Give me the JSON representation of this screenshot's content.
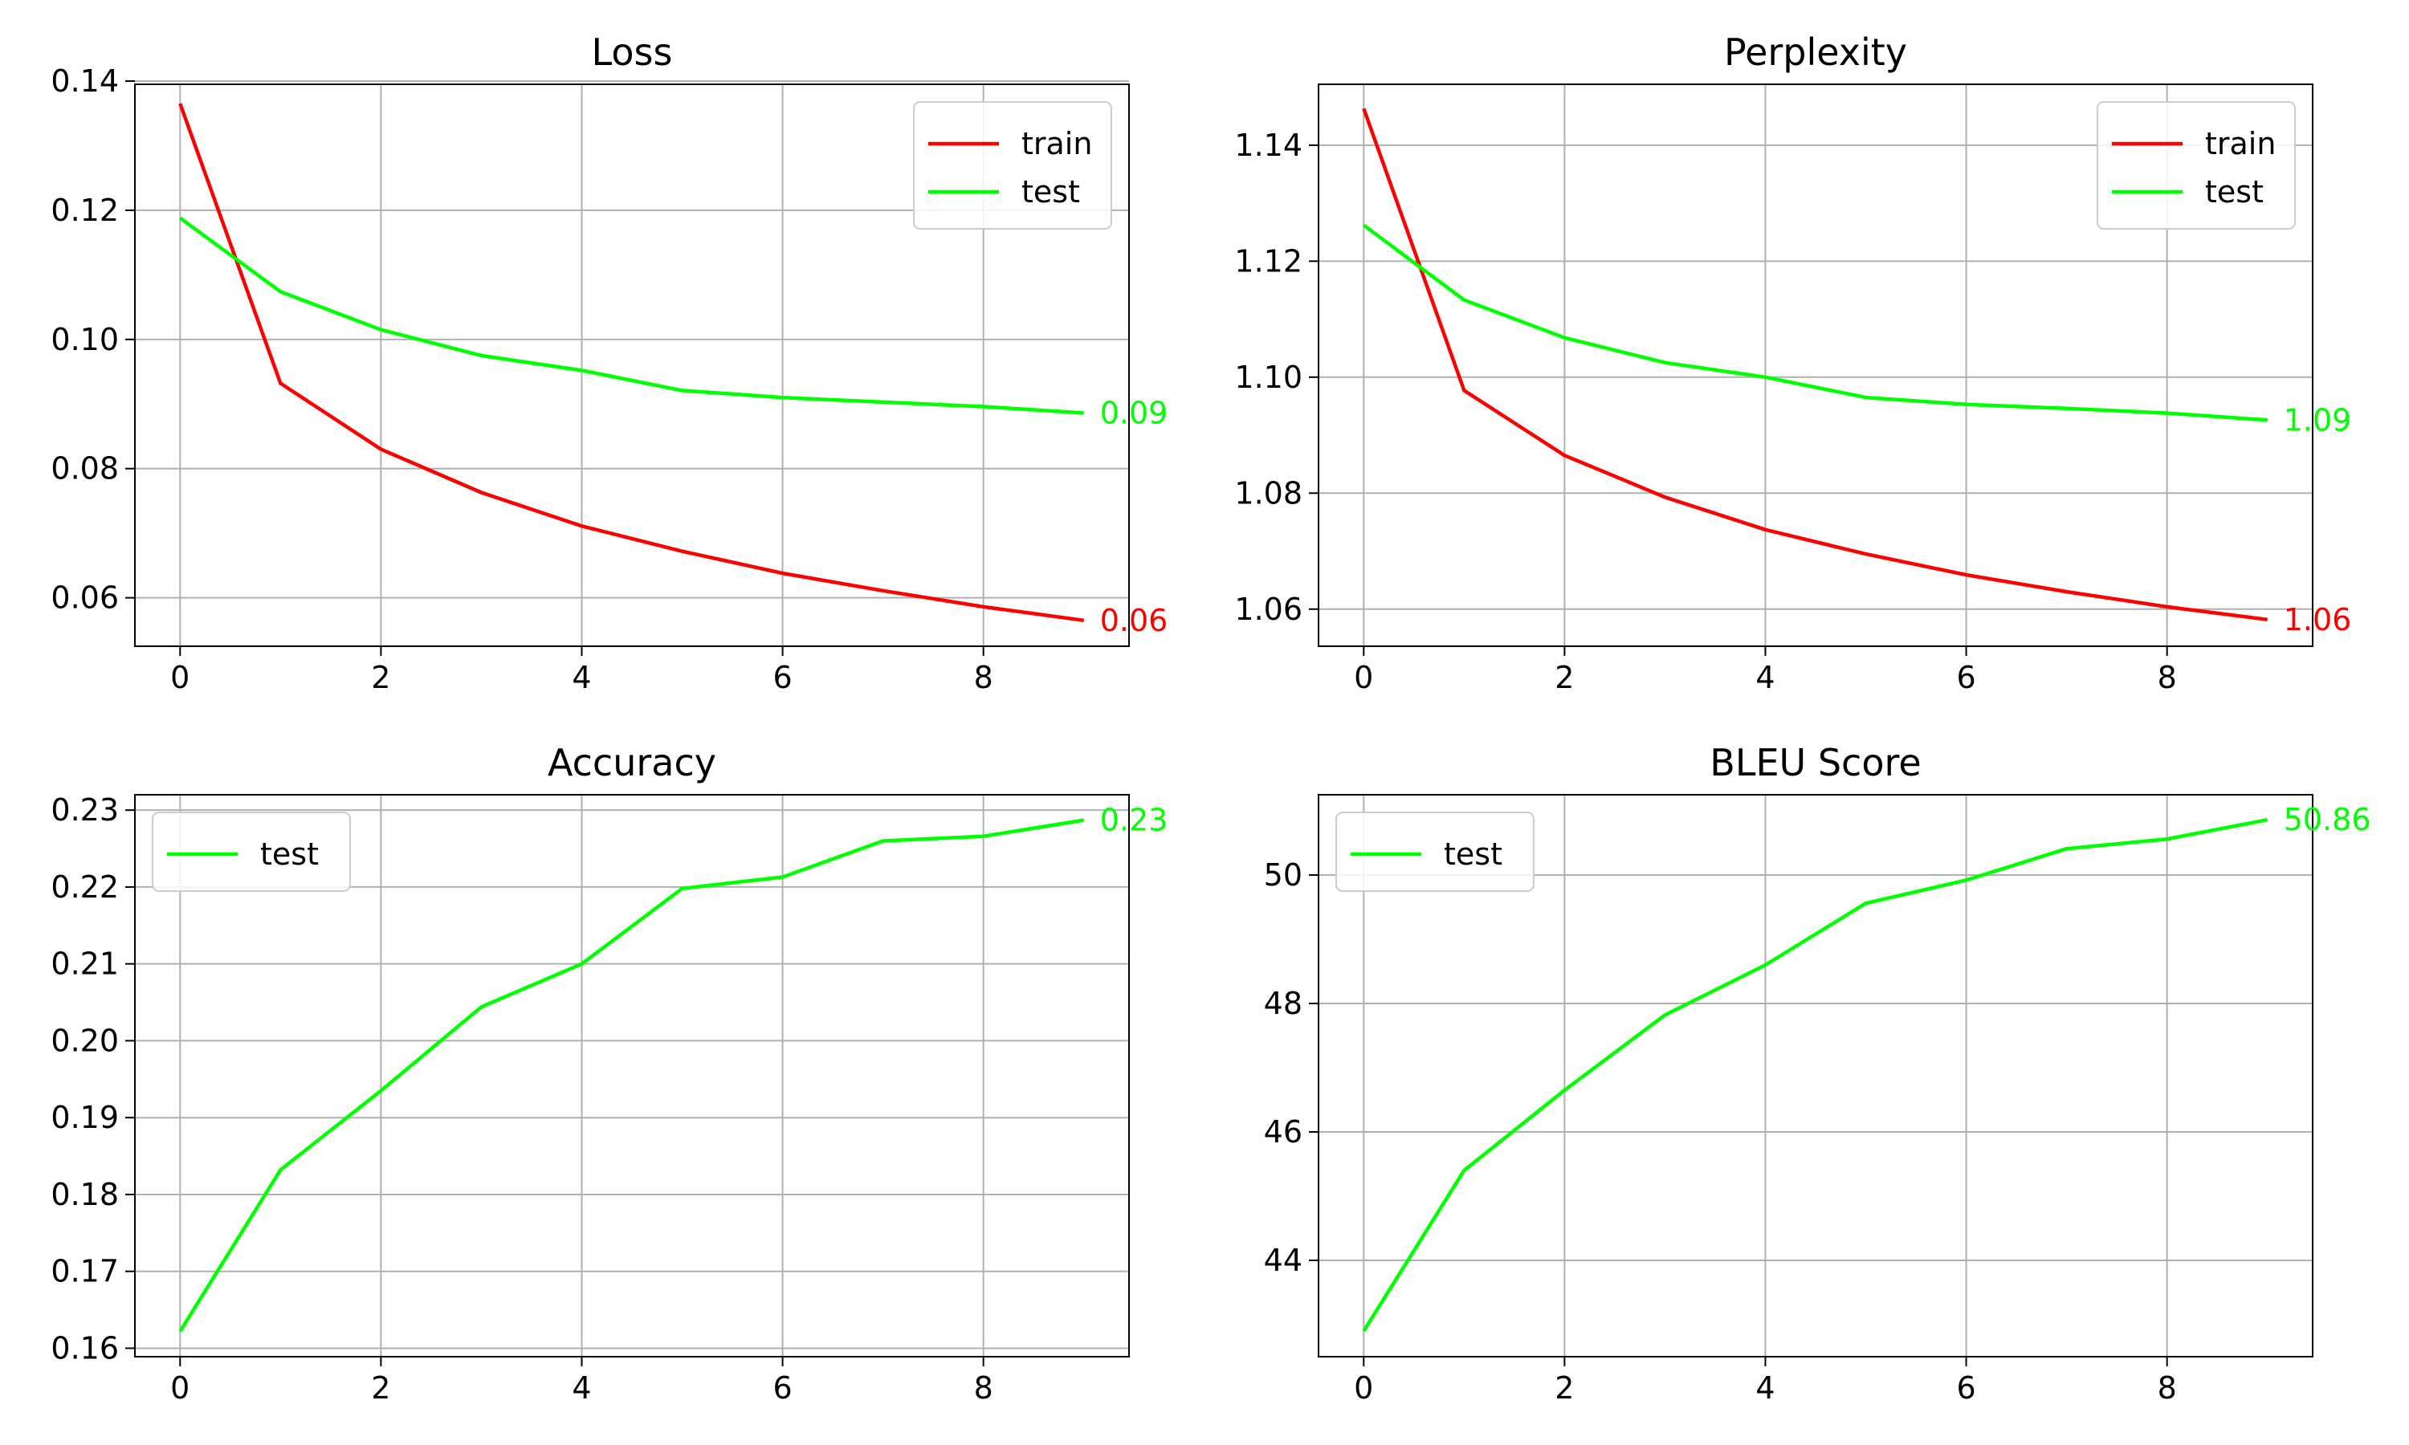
{
  "colors": {
    "train": "#ff0000",
    "test": "#00ff00"
  },
  "chart_data": [
    {
      "type": "line",
      "title": "Loss",
      "x": [
        0,
        1,
        2,
        3,
        4,
        5,
        6,
        7,
        8,
        9
      ],
      "xlim": [
        -0.45,
        9.45
      ],
      "ylim": [
        0.0525,
        0.1395
      ],
      "xticks": [
        "0",
        "2",
        "4",
        "6",
        "8"
      ],
      "yticks": [
        "0.06",
        "0.08",
        "0.10",
        "0.12",
        "0.14"
      ],
      "grid": true,
      "legend_position": "upper-right",
      "series": [
        {
          "name": "train",
          "color": "#ff0000",
          "values": [
            0.1365,
            0.0932,
            0.083,
            0.0763,
            0.0711,
            0.0672,
            0.0638,
            0.0611,
            0.0586,
            0.0565
          ],
          "end_label": "0.06"
        },
        {
          "name": "test",
          "color": "#00ff00",
          "values": [
            0.1188,
            0.1074,
            0.1015,
            0.0975,
            0.0952,
            0.0921,
            0.091,
            0.0903,
            0.0896,
            0.0886
          ],
          "end_label": "0.09"
        }
      ]
    },
    {
      "type": "line",
      "title": "Perplexity",
      "x": [
        0,
        1,
        2,
        3,
        4,
        5,
        6,
        7,
        8,
        9
      ],
      "xlim": [
        -0.45,
        9.45
      ],
      "ylim": [
        1.0536,
        1.1505
      ],
      "xticks": [
        "0",
        "2",
        "4",
        "6",
        "8"
      ],
      "yticks": [
        "1.06",
        "1.08",
        "1.10",
        "1.12",
        "1.14"
      ],
      "grid": true,
      "legend_position": "upper-right",
      "series": [
        {
          "name": "train",
          "color": "#ff0000",
          "values": [
            1.1463,
            1.0977,
            1.0865,
            1.0793,
            1.0737,
            1.0695,
            1.0659,
            1.063,
            1.0604,
            1.0582
          ],
          "end_label": "1.06"
        },
        {
          "name": "test",
          "color": "#00ff00",
          "values": [
            1.1262,
            1.1133,
            1.1068,
            1.1025,
            1.1,
            1.0965,
            1.0953,
            1.0946,
            1.0938,
            1.0926
          ],
          "end_label": "1.09"
        }
      ]
    },
    {
      "type": "line",
      "title": "Accuracy",
      "x": [
        0,
        1,
        2,
        3,
        4,
        5,
        6,
        7,
        8,
        9
      ],
      "xlim": [
        -0.45,
        9.45
      ],
      "ylim": [
        0.1589,
        0.232
      ],
      "xticks": [
        "0",
        "2",
        "4",
        "6",
        "8"
      ],
      "yticks": [
        "0.16",
        "0.17",
        "0.18",
        "0.19",
        "0.20",
        "0.21",
        "0.22",
        "0.23"
      ],
      "grid": true,
      "legend_position": "upper-left",
      "series": [
        {
          "name": "test",
          "color": "#00ff00",
          "values": [
            0.1622,
            0.1832,
            0.1935,
            0.2044,
            0.21,
            0.2198,
            0.2213,
            0.226,
            0.2266,
            0.2287
          ],
          "end_label": "0.23"
        }
      ]
    },
    {
      "type": "line",
      "title": "BLEU Score",
      "x": [
        0,
        1,
        2,
        3,
        4,
        5,
        6,
        7,
        8,
        9
      ],
      "xlim": [
        -0.45,
        9.45
      ],
      "ylim": [
        42.5,
        51.25
      ],
      "xticks": [
        "0",
        "2",
        "4",
        "6",
        "8"
      ],
      "yticks": [
        "44",
        "46",
        "48",
        "50"
      ],
      "grid": true,
      "legend_position": "upper-left",
      "series": [
        {
          "name": "test",
          "color": "#00ff00",
          "values": [
            42.9,
            45.4,
            46.65,
            47.82,
            48.6,
            49.56,
            49.92,
            50.41,
            50.56,
            50.86
          ],
          "end_label": "50.86"
        }
      ]
    }
  ]
}
